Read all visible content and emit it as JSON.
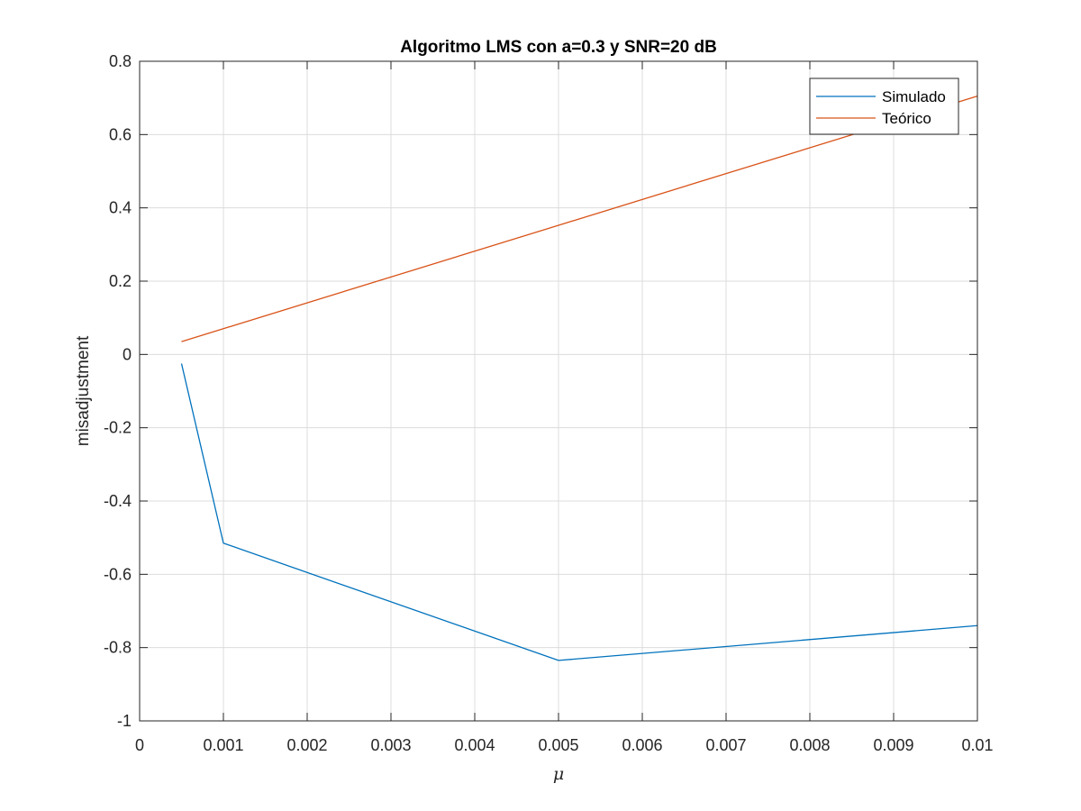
{
  "chart_data": {
    "type": "line",
    "title": "Algoritmo LMS con a=0.3 y SNR=20 dB",
    "xlabel": "μ",
    "ylabel": "misadjustment",
    "xlim": [
      0,
      0.01
    ],
    "ylim": [
      -1,
      0.8
    ],
    "xticks": [
      0,
      0.001,
      0.002,
      0.003,
      0.004,
      0.005,
      0.006,
      0.007,
      0.008,
      0.009,
      0.01
    ],
    "xtick_labels": [
      "0",
      "0.001",
      "0.002",
      "0.003",
      "0.004",
      "0.005",
      "0.006",
      "0.007",
      "0.008",
      "0.009",
      "0.01"
    ],
    "yticks": [
      -1,
      -0.8,
      -0.6,
      -0.4,
      -0.2,
      0,
      0.2,
      0.4,
      0.6,
      0.8
    ],
    "ytick_labels": [
      "-1",
      "-0.8",
      "-0.6",
      "-0.4",
      "-0.2",
      "0",
      "0.2",
      "0.4",
      "0.6",
      "0.8"
    ],
    "grid": true,
    "legend_position": "top-right",
    "series": [
      {
        "name": "Simulado",
        "color": "#0072BD",
        "x": [
          0.0005,
          0.001,
          0.005,
          0.01
        ],
        "y": [
          -0.025,
          -0.515,
          -0.835,
          -0.74
        ]
      },
      {
        "name": "Teórico",
        "color": "#D95319",
        "x": [
          0.0005,
          0.01
        ],
        "y": [
          0.035,
          0.705
        ]
      }
    ]
  }
}
